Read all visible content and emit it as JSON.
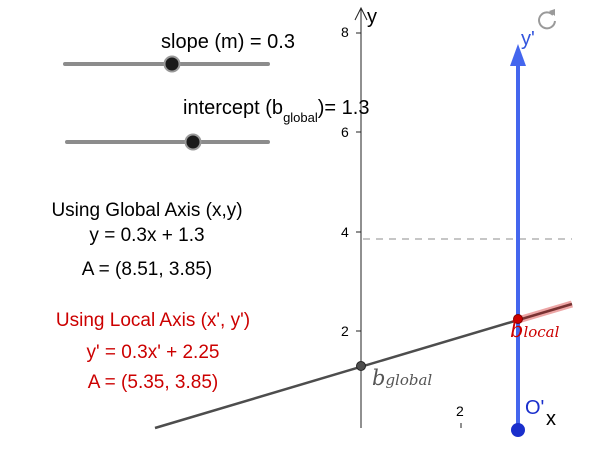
{
  "sliders": {
    "slope": {
      "label": "slope (m) = 0.3",
      "value": 0.3
    },
    "intercept": {
      "label_main": "intercept (b",
      "label_sub": "global",
      "label_end": ")= 1.3",
      "value": 1.3
    }
  },
  "global_info": {
    "heading": "Using Global Axis (x,y)",
    "equation": "y = 0.3x + 1.3",
    "point": "A = (8.51, 3.85)"
  },
  "local_info": {
    "heading": "Using Local Axis (x', y')",
    "equation": "y' = 0.3x' + 2.25",
    "point": "A = (5.35, 3.85)"
  },
  "axes": {
    "y_label": "y",
    "y_ticks": [
      "8",
      "6",
      "4",
      "2"
    ],
    "x_ticks": [
      "2"
    ],
    "local_y_label": "y'",
    "local_x_label": "x",
    "local_origin_label": "O'"
  },
  "point_labels": {
    "b_global_main": "b",
    "b_global_sub": "global",
    "b_local_main": "b",
    "b_local_sub": "local"
  },
  "colors": {
    "line": "#4d4d4d",
    "local_axis": "#4466ee",
    "red_text": "#cc0000",
    "point_red": "#cc0000",
    "slider_track": "#8c8c8c",
    "dashed": "#b3b3b3"
  },
  "toolbar": {
    "refresh_icon": "refresh-icon"
  }
}
